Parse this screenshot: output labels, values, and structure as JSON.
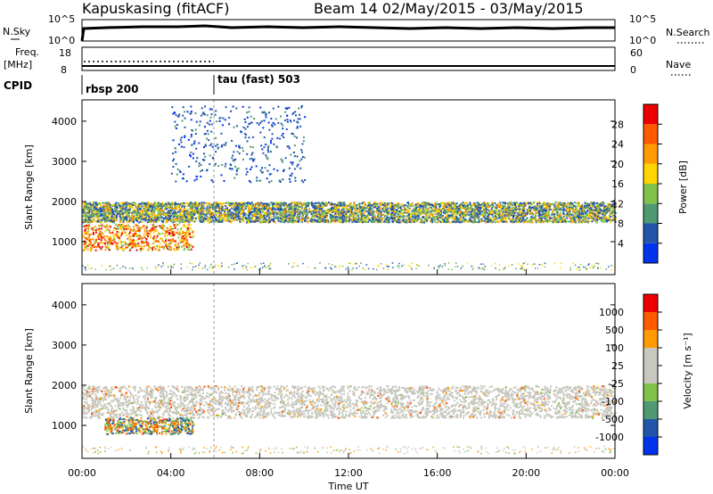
{
  "header": {
    "station": "Kapuskasing (fitACF)",
    "beam_date": "Beam 14 02/May/2015 - 03/May/2015"
  },
  "top_panel": {
    "left_label": "N.Sky",
    "right_label": "N.Search",
    "left_ticks": [
      "10^5",
      "10^0"
    ],
    "right_ticks": [
      "10^5",
      "10^0"
    ]
  },
  "freq_panel": {
    "left_label_line1": "Freq.",
    "left_label_line2": "[MHz]",
    "left_ticks": [
      "18",
      "8"
    ],
    "right_ticks": [
      "60",
      "0"
    ],
    "right_label": "Nave"
  },
  "cpid": {
    "label": "CPID",
    "segments": [
      "rbsp 200",
      "tau (fast) 503"
    ]
  },
  "colors": {
    "power": [
      "#0033ee",
      "#2255aa",
      "#4f9a73",
      "#80c24c",
      "#ffd400",
      "#ff9a00",
      "#ff5a00",
      "#ee0000"
    ],
    "velocity": [
      "#ee0000",
      "#ff5a00",
      "#ff9a00",
      "#c8c8c0",
      "#c8c8c0",
      "#80c24c",
      "#4f9a73",
      "#2255aa",
      "#0033ee"
    ]
  },
  "chart_data": [
    {
      "type": "heatmap",
      "title": "",
      "xlabel": "",
      "ylabel": "Slant Range [km]",
      "x_ticks": [
        "00:00",
        "04:00",
        "08:00",
        "12:00",
        "16:00",
        "20:00",
        "00:00"
      ],
      "y_ticks": [
        "1000",
        "2000",
        "3000",
        "4000"
      ],
      "xlim_hours": [
        0,
        24
      ],
      "ylim_km": [
        180,
        4530
      ],
      "colorbar": {
        "label": "Power [dB]",
        "ticks": [
          "4",
          "8",
          "12",
          "16",
          "20",
          "24",
          "28"
        ],
        "range": [
          0,
          30
        ]
      },
      "features": [
        {
          "name": "main band",
          "t_start": 0,
          "t_end": 24,
          "range_km": [
            1500,
            2000
          ],
          "power_db": [
            8,
            22
          ]
        },
        {
          "name": "strong near-range echo",
          "t_start": 0,
          "t_end": 5,
          "range_km": [
            800,
            1450
          ],
          "power_db": [
            20,
            28
          ]
        },
        {
          "name": "spread echo",
          "t_start": 4,
          "t_end": 10,
          "range_km": [
            2500,
            4400
          ],
          "power_db": [
            4,
            10
          ]
        }
      ]
    },
    {
      "type": "heatmap",
      "title": "",
      "xlabel": "Time UT",
      "ylabel": "Slant Range [km]",
      "x_ticks": [
        "00:00",
        "04:00",
        "08:00",
        "12:00",
        "16:00",
        "20:00",
        "00:00"
      ],
      "y_ticks": [
        "1000",
        "2000",
        "3000",
        "4000"
      ],
      "xlim_hours": [
        0,
        24
      ],
      "ylim_km": [
        180,
        4530
      ],
      "colorbar": {
        "label": "Velocity [m s⁻¹]",
        "ticks": [
          "1000",
          "500",
          "100",
          "25",
          "-25",
          "-100",
          "-500",
          "-1000"
        ]
      },
      "features": [
        {
          "name": "ground scatter band",
          "t_start": 0,
          "t_end": 24,
          "range_km": [
            1200,
            2000
          ],
          "velocity": [
            -25,
            25
          ]
        },
        {
          "name": "positive velocity patch",
          "t_start": 1,
          "t_end": 5,
          "range_km": [
            800,
            1200
          ],
          "velocity": [
            100,
            500
          ]
        }
      ]
    }
  ]
}
